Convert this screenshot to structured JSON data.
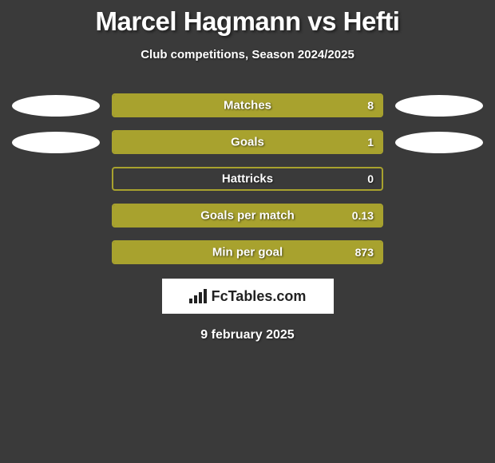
{
  "title": "Marcel Hagmann vs Hefti",
  "subtitle": "Club competitions, Season 2024/2025",
  "footer_brand": "FcTables.com",
  "date": "9 february 2025",
  "bar_border_color": "#a8a22e",
  "bar_fill_color": "#a8a22e",
  "ellipse_color": "#ffffff",
  "background_color": "#3a3a3a",
  "stats": [
    {
      "label": "Matches",
      "value": "8",
      "fill_pct": 100,
      "left_ellipse": true,
      "right_ellipse": true
    },
    {
      "label": "Goals",
      "value": "1",
      "fill_pct": 100,
      "left_ellipse": true,
      "right_ellipse": true
    },
    {
      "label": "Hattricks",
      "value": "0",
      "fill_pct": 0,
      "left_ellipse": false,
      "right_ellipse": false
    },
    {
      "label": "Goals per match",
      "value": "0.13",
      "fill_pct": 100,
      "left_ellipse": false,
      "right_ellipse": false
    },
    {
      "label": "Min per goal",
      "value": "873",
      "fill_pct": 100,
      "left_ellipse": false,
      "right_ellipse": false
    }
  ]
}
